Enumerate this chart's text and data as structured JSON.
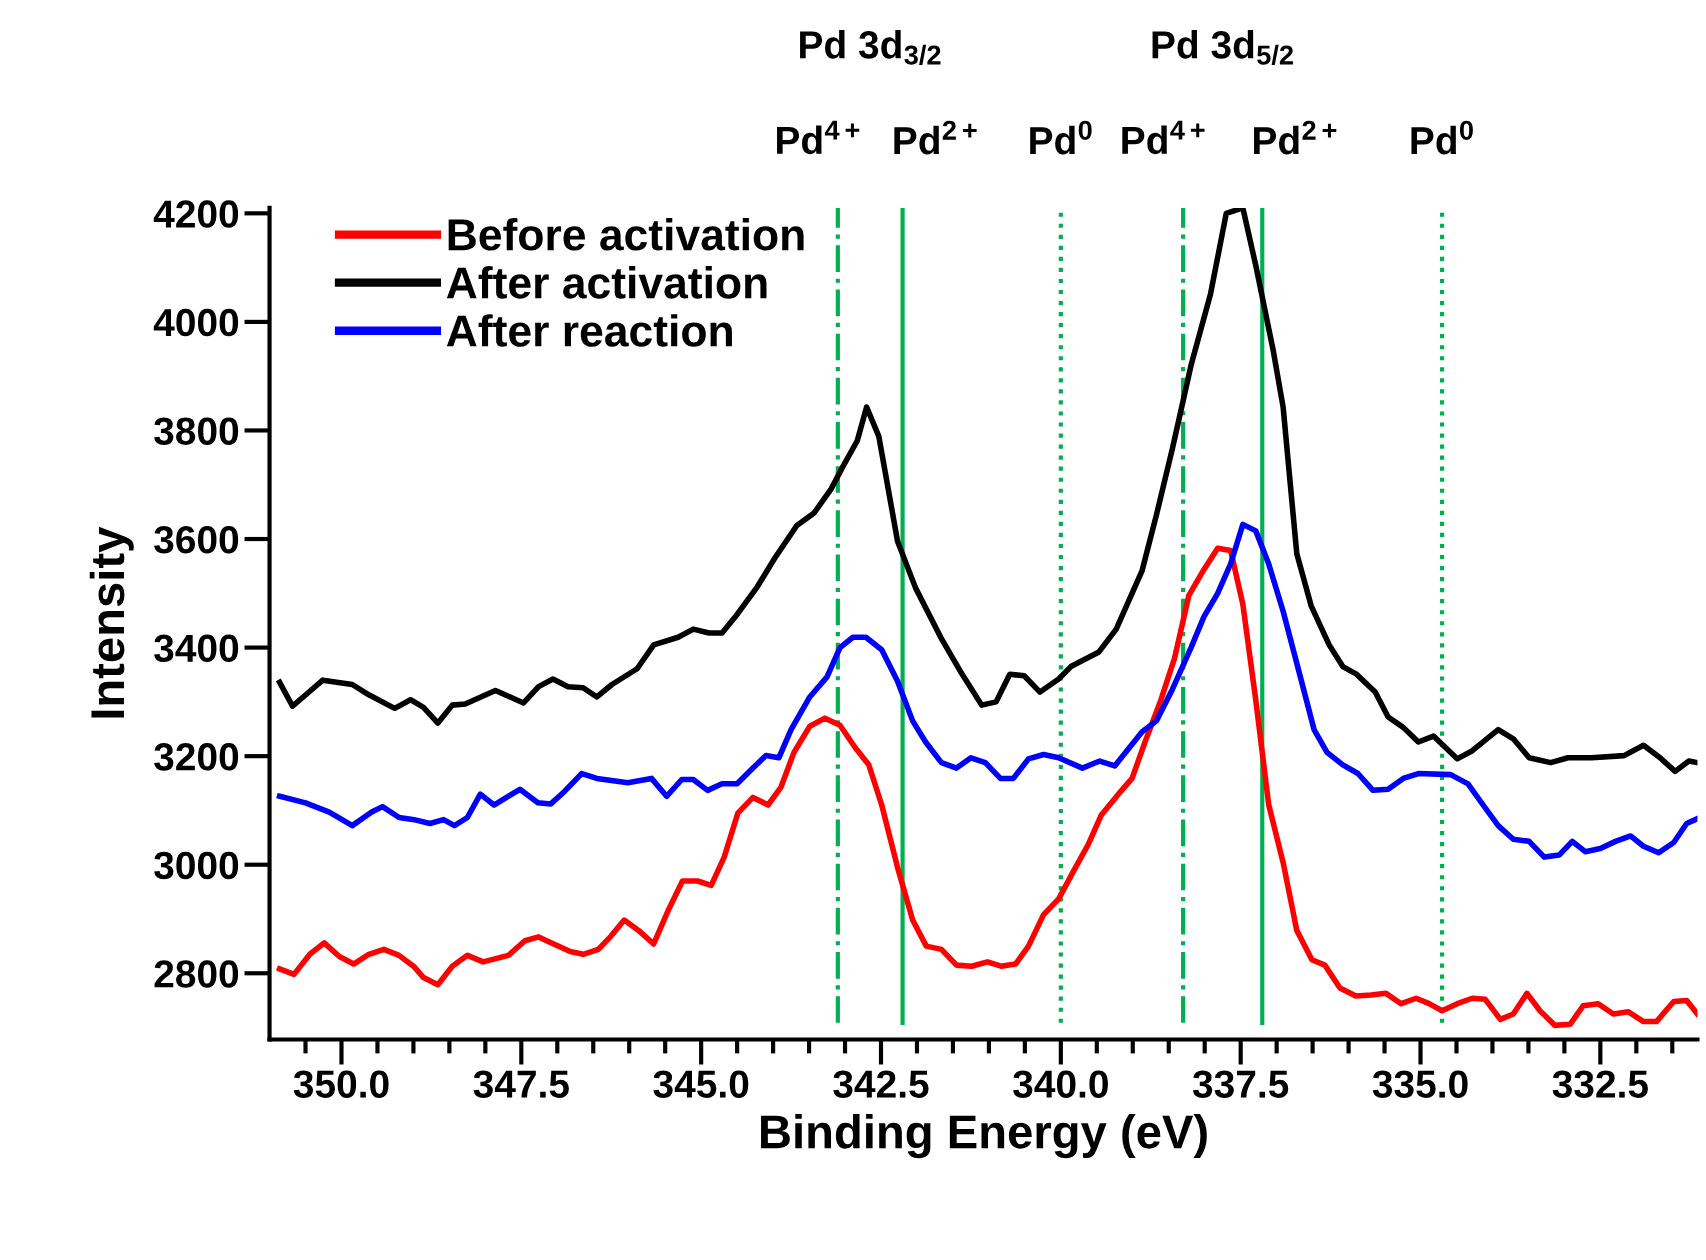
{
  "chart_data": {
    "type": "line",
    "xlabel": "Binding Energy (eV)",
    "ylabel": "Intensity",
    "xlim": [
      351.0,
      331.15
    ],
    "ylim": [
      2678,
      4210
    ],
    "xticks": [
      {
        "value": 350.0,
        "label": "350.0"
      },
      347.5,
      {
        "value": 345.0,
        "label": "345.0"
      },
      342.5,
      {
        "value": 340.0,
        "label": "340.0"
      },
      337.5,
      {
        "value": 335.0,
        "label": "335.0"
      },
      332.5,
      {
        "value": 350.5,
        "label": null
      },
      {
        "value": 349.5,
        "label": null
      },
      {
        "value": 349.0,
        "label": null
      },
      {
        "value": 348.5,
        "label": null
      },
      {
        "value": 348.0,
        "label": null
      },
      {
        "value": 347.0,
        "label": null
      },
      {
        "value": 346.5,
        "label": null
      },
      {
        "value": 346.0,
        "label": null
      },
      {
        "value": 345.5,
        "label": null
      },
      {
        "value": 344.5,
        "label": null
      },
      {
        "value": 344.0,
        "label": null
      },
      {
        "value": 343.5,
        "label": null
      },
      {
        "value": 343.0,
        "label": null
      },
      {
        "value": 342.0,
        "label": null
      },
      {
        "value": 341.5,
        "label": null
      },
      {
        "value": 341.0,
        "label": null
      },
      {
        "value": 340.5,
        "label": null
      },
      {
        "value": 339.5,
        "label": null
      },
      {
        "value": 339.0,
        "label": null
      },
      {
        "value": 338.5,
        "label": null
      },
      {
        "value": 338.0,
        "label": null
      },
      {
        "value": 337.0,
        "label": null
      },
      {
        "value": 336.5,
        "label": null
      },
      {
        "value": 336.0,
        "label": null
      },
      {
        "value": 335.5,
        "label": null
      },
      {
        "value": 334.5,
        "label": null
      },
      {
        "value": 334.0,
        "label": null
      },
      {
        "value": 333.5,
        "label": null
      },
      {
        "value": 333.0,
        "label": null
      },
      {
        "value": 332.0,
        "label": null
      },
      {
        "value": 331.5,
        "label": null
      }
    ],
    "yticks": [
      2800,
      3000,
      3200,
      3400,
      3600,
      3800,
      4000,
      4200
    ],
    "grid": false,
    "legend": "top left",
    "marker": "none",
    "line_style": "solid",
    "series": [
      {
        "name": "Before activation",
        "color": "#ff0000",
        "x": [
          350.86,
          350.66,
          350.44,
          350.24,
          350.03,
          349.83,
          349.62,
          349.41,
          349.2,
          348.99,
          348.86,
          348.66,
          348.46,
          348.25,
          348.03,
          347.68,
          347.45,
          347.26,
          347.05,
          346.82,
          346.64,
          346.43,
          346.25,
          346.07,
          345.87,
          345.66,
          345.45,
          345.26,
          345.05,
          344.86,
          344.68,
          344.49,
          344.28,
          344.07,
          343.89,
          343.71,
          343.49,
          343.28,
          343.07,
          342.86,
          342.67,
          342.49,
          342.27,
          342.06,
          341.87,
          341.66,
          341.45,
          341.24,
          341.02,
          340.83,
          340.63,
          340.45,
          340.24,
          340.03,
          339.82,
          339.62,
          339.44,
          339.2,
          339.01,
          338.83,
          338.61,
          338.42,
          338.22,
          338.01,
          337.82,
          337.64,
          337.47,
          337.29,
          337.11,
          336.91,
          336.72,
          336.51,
          336.33,
          336.12,
          335.9,
          335.69,
          335.48,
          335.27,
          335.06,
          334.88,
          334.7,
          334.49,
          334.28,
          334.1,
          333.89,
          333.71,
          333.52,
          333.34,
          333.13,
          332.92,
          332.74,
          332.53,
          332.32,
          332.11,
          331.9,
          331.72,
          331.48,
          331.3,
          331.15
        ],
        "values": [
          2808,
          2798,
          2835,
          2856,
          2831,
          2817,
          2835,
          2844,
          2833,
          2812,
          2792,
          2779,
          2813,
          2833,
          2821,
          2833,
          2860,
          2867,
          2854,
          2840,
          2835,
          2844,
          2869,
          2898,
          2879,
          2854,
          2918,
          2970,
          2970,
          2962,
          3014,
          3095,
          3124,
          3110,
          3143,
          3207,
          3255,
          3270,
          3257,
          3216,
          3184,
          3110,
          2995,
          2898,
          2850,
          2844,
          2815,
          2813,
          2821,
          2813,
          2817,
          2850,
          2908,
          2937,
          2989,
          3037,
          3091,
          3130,
          3159,
          3226,
          3303,
          3380,
          3496,
          3544,
          3583,
          3579,
          3480,
          3303,
          3110,
          3004,
          2879,
          2825,
          2815,
          2773,
          2758,
          2760,
          2763,
          2744,
          2754,
          2744,
          2731,
          2744,
          2754,
          2752,
          2715,
          2725,
          2763,
          2731,
          2704,
          2706,
          2740,
          2744,
          2725,
          2729,
          2711,
          2711,
          2748,
          2750,
          2725
        ]
      },
      {
        "name": "After activation",
        "color": "#000000",
        "x": [
          350.86,
          350.68,
          350.48,
          350.26,
          349.85,
          349.62,
          349.26,
          349.04,
          348.86,
          348.66,
          348.46,
          348.28,
          347.86,
          347.47,
          347.26,
          347.06,
          346.85,
          346.64,
          346.45,
          346.24,
          345.89,
          345.66,
          345.32,
          345.11,
          344.89,
          344.71,
          344.5,
          344.22,
          343.98,
          343.67,
          343.43,
          343.19,
          343.04,
          342.83,
          342.7,
          342.53,
          342.27,
          342.02,
          341.67,
          341.4,
          341.1,
          340.9,
          340.71,
          340.51,
          340.29,
          340.03,
          339.86,
          339.47,
          339.23,
          338.87,
          338.67,
          338.45,
          338.19,
          337.92,
          337.7,
          337.47,
          337.29,
          337.05,
          336.91,
          336.72,
          336.52,
          336.27,
          336.08,
          335.89,
          335.63,
          335.45,
          335.24,
          335.03,
          334.82,
          334.49,
          334.28,
          333.92,
          333.71,
          333.49,
          333.19,
          332.95,
          332.62,
          332.17,
          331.9,
          331.67,
          331.46,
          331.27,
          331.15
        ],
        "values": [
          3336,
          3292,
          3315,
          3340,
          3332,
          3313,
          3288,
          3304,
          3290,
          3261,
          3294,
          3296,
          3321,
          3298,
          3328,
          3342,
          3328,
          3326,
          3309,
          3332,
          3361,
          3405,
          3419,
          3434,
          3427,
          3427,
          3461,
          3512,
          3564,
          3625,
          3648,
          3693,
          3731,
          3781,
          3843,
          3789,
          3596,
          3510,
          3419,
          3357,
          3294,
          3300,
          3351,
          3348,
          3318,
          3342,
          3365,
          3392,
          3434,
          3542,
          3645,
          3766,
          3920,
          4051,
          4200,
          4210,
          4104,
          3949,
          3843,
          3573,
          3477,
          3405,
          3365,
          3351,
          3318,
          3272,
          3253,
          3226,
          3237,
          3195,
          3210,
          3249,
          3232,
          3197,
          3188,
          3197,
          3197,
          3201,
          3220,
          3197,
          3172,
          3191,
          3188
        ]
      },
      {
        "name": "After reaction",
        "color": "#0000ff",
        "x": [
          350.86,
          350.5,
          350.17,
          349.85,
          349.58,
          349.43,
          349.2,
          348.99,
          348.77,
          348.58,
          348.43,
          348.25,
          348.07,
          347.88,
          347.52,
          347.27,
          347.09,
          346.9,
          346.66,
          346.45,
          346.02,
          345.69,
          345.48,
          345.27,
          345.11,
          344.91,
          344.71,
          344.5,
          344.28,
          344.1,
          343.92,
          343.75,
          343.49,
          343.25,
          343.07,
          342.89,
          342.71,
          342.49,
          342.27,
          342.06,
          341.88,
          341.66,
          341.45,
          341.25,
          341.05,
          340.84,
          340.66,
          340.45,
          340.24,
          340.03,
          339.7,
          339.46,
          339.25,
          338.87,
          338.67,
          338.45,
          338.19,
          338.01,
          337.82,
          337.64,
          337.47,
          337.29,
          337.11,
          336.91,
          336.72,
          336.48,
          336.3,
          336.08,
          335.87,
          335.66,
          335.45,
          335.24,
          335.03,
          334.58,
          334.34,
          334.13,
          333.92,
          333.71,
          333.49,
          333.28,
          333.07,
          332.89,
          332.71,
          332.5,
          332.29,
          332.08,
          331.9,
          331.69,
          331.48,
          331.3,
          331.15
        ],
        "values": [
          3126,
          3114,
          3097,
          3072,
          3097,
          3107,
          3087,
          3083,
          3076,
          3083,
          3072,
          3087,
          3130,
          3110,
          3139,
          3114,
          3112,
          3135,
          3168,
          3159,
          3151,
          3159,
          3126,
          3157,
          3157,
          3137,
          3149,
          3149,
          3178,
          3201,
          3197,
          3249,
          3309,
          3346,
          3400,
          3419,
          3419,
          3396,
          3338,
          3265,
          3226,
          3188,
          3178,
          3197,
          3188,
          3159,
          3159,
          3195,
          3203,
          3197,
          3178,
          3191,
          3182,
          3245,
          3265,
          3323,
          3400,
          3457,
          3500,
          3554,
          3627,
          3615,
          3554,
          3467,
          3371,
          3249,
          3207,
          3184,
          3168,
          3137,
          3139,
          3159,
          3168,
          3166,
          3149,
          3110,
          3072,
          3047,
          3043,
          3014,
          3018,
          3043,
          3024,
          3030,
          3043,
          3053,
          3034,
          3022,
          3041,
          3076,
          3085
        ]
      }
    ],
    "ref_lines": [
      {
        "axis": "x",
        "value": 343.1,
        "label": "Pd$^{4+}$",
        "color": "#00b050",
        "line_style": "dashdot"
      },
      {
        "axis": "x",
        "value": 342.2,
        "label": "Pd$^{2+}$",
        "color": "#00b050",
        "line_style": "solid"
      },
      {
        "axis": "x",
        "value": 340.0,
        "label": "Pd$^{0}$",
        "color": "#00b050",
        "line_style": "dotted"
      },
      {
        "axis": "x",
        "value": 338.3,
        "label": "Pd$^{4+}$",
        "color": "#00b050",
        "line_style": "dashdot"
      },
      {
        "axis": "x",
        "value": 337.2,
        "label": "Pd$^{2+}$",
        "color": "#00b050",
        "line_style": "solid"
      },
      {
        "axis": "x",
        "value": 334.7,
        "label": "Pd$^{0}$",
        "color": "#00b050",
        "line_style": "dotted"
      }
    ],
    "annotations": [
      "Pd 3d$_{3/2}$",
      "Pd 3d$_{5/2}$"
    ]
  }
}
